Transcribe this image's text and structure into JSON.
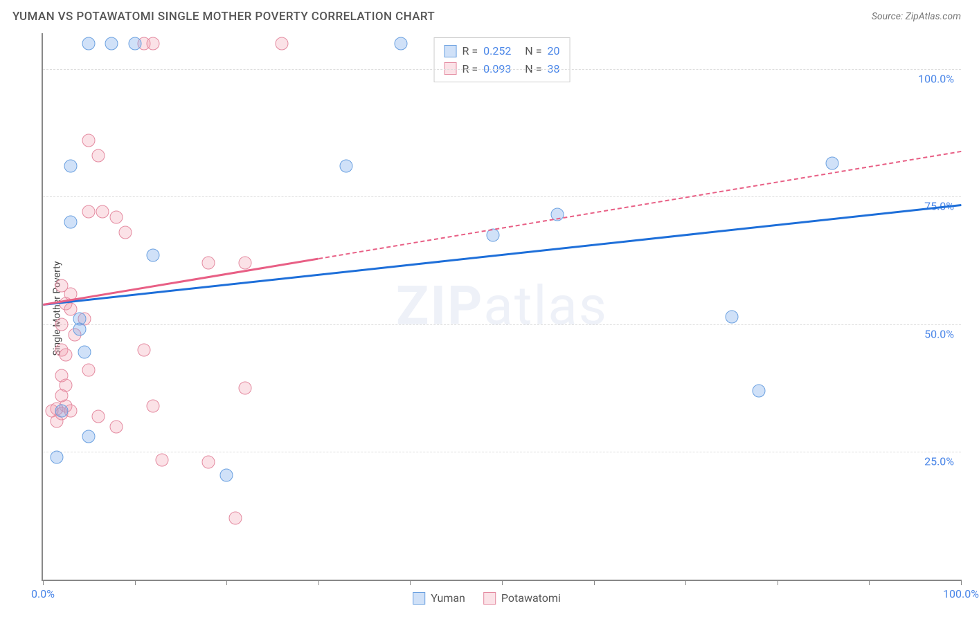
{
  "chart": {
    "type": "scatter",
    "title": "YUMAN VS POTAWATOMI SINGLE MOTHER POVERTY CORRELATION CHART",
    "source": "Source: ZipAtlas.com",
    "ylabel": "Single Mother Poverty",
    "watermark_bold": "ZIP",
    "watermark_rest": "atlas",
    "xlim": [
      0,
      100
    ],
    "ylim": [
      0,
      107
    ],
    "x_tick_labels": {
      "min": "0.0%",
      "max": "100.0%"
    },
    "y_grid": [
      {
        "v": 25,
        "label": "25.0%"
      },
      {
        "v": 50,
        "label": "50.0%"
      },
      {
        "v": 75,
        "label": "75.0%"
      },
      {
        "v": 100,
        "label": "100.0%"
      }
    ],
    "x_ticks": [
      0,
      10,
      20,
      30,
      40,
      50,
      60,
      70,
      80,
      90,
      100
    ],
    "series": {
      "yuman": {
        "label": "Yuman",
        "fill": "rgba(120,170,235,0.35)",
        "stroke": "#6aa0e0",
        "trend_color": "#1e6fd9",
        "R_label": "R =",
        "R": "0.252",
        "N_label": "N =",
        "N": "20",
        "trend": {
          "x1": 0,
          "y1": 54,
          "x2": 100,
          "y2": 73.5,
          "solid_to_x": 100
        },
        "points": [
          {
            "x": 5,
            "y": 105
          },
          {
            "x": 7.5,
            "y": 105
          },
          {
            "x": 10,
            "y": 105
          },
          {
            "x": 39,
            "y": 105
          },
          {
            "x": 3,
            "y": 81
          },
          {
            "x": 33,
            "y": 81
          },
          {
            "x": 86,
            "y": 81.5
          },
          {
            "x": 3,
            "y": 70
          },
          {
            "x": 12,
            "y": 63.5
          },
          {
            "x": 56,
            "y": 71.5
          },
          {
            "x": 49,
            "y": 67.5
          },
          {
            "x": 4,
            "y": 51
          },
          {
            "x": 4.5,
            "y": 44.5
          },
          {
            "x": 2,
            "y": 33
          },
          {
            "x": 5,
            "y": 28
          },
          {
            "x": 1.5,
            "y": 24
          },
          {
            "x": 20,
            "y": 20.5
          },
          {
            "x": 75,
            "y": 51.5
          },
          {
            "x": 78,
            "y": 37
          },
          {
            "x": 4,
            "y": 49
          }
        ]
      },
      "potawatomi": {
        "label": "Potawatomi",
        "fill": "rgba(240,150,170,0.28)",
        "stroke": "#e48aa0",
        "trend_color": "#e85f85",
        "R_label": "R =",
        "R": "0.093",
        "N_label": "N =",
        "N": "38",
        "trend": {
          "x1": 0,
          "y1": 54,
          "x2": 100,
          "y2": 84,
          "solid_to_x": 30
        },
        "points": [
          {
            "x": 11,
            "y": 105
          },
          {
            "x": 12,
            "y": 105
          },
          {
            "x": 26,
            "y": 105
          },
          {
            "x": 5,
            "y": 86
          },
          {
            "x": 6,
            "y": 83
          },
          {
            "x": 5,
            "y": 72
          },
          {
            "x": 6.5,
            "y": 72
          },
          {
            "x": 8,
            "y": 71
          },
          {
            "x": 9,
            "y": 68
          },
          {
            "x": 2,
            "y": 57.5
          },
          {
            "x": 3,
            "y": 56
          },
          {
            "x": 2.5,
            "y": 54
          },
          {
            "x": 18,
            "y": 62
          },
          {
            "x": 22,
            "y": 62
          },
          {
            "x": 3,
            "y": 53
          },
          {
            "x": 4.5,
            "y": 51
          },
          {
            "x": 11,
            "y": 45
          },
          {
            "x": 2,
            "y": 45
          },
          {
            "x": 2,
            "y": 40
          },
          {
            "x": 2.5,
            "y": 38
          },
          {
            "x": 22,
            "y": 37.5
          },
          {
            "x": 2,
            "y": 36
          },
          {
            "x": 2.5,
            "y": 34
          },
          {
            "x": 1.5,
            "y": 33.5
          },
          {
            "x": 1,
            "y": 33
          },
          {
            "x": 2,
            "y": 32.5
          },
          {
            "x": 3,
            "y": 33
          },
          {
            "x": 6,
            "y": 32
          },
          {
            "x": 1.5,
            "y": 31
          },
          {
            "x": 12,
            "y": 34
          },
          {
            "x": 8,
            "y": 30
          },
          {
            "x": 13,
            "y": 23.5
          },
          {
            "x": 18,
            "y": 23
          },
          {
            "x": 21,
            "y": 12
          },
          {
            "x": 2,
            "y": 50
          },
          {
            "x": 3.5,
            "y": 48
          },
          {
            "x": 2.5,
            "y": 44
          },
          {
            "x": 5,
            "y": 41
          }
        ]
      }
    },
    "title_fontsize": 17,
    "label_fontsize": 14,
    "tick_fontsize": 16,
    "background_color": "#ffffff",
    "grid_color": "#dddddd",
    "marker_size": 19
  }
}
